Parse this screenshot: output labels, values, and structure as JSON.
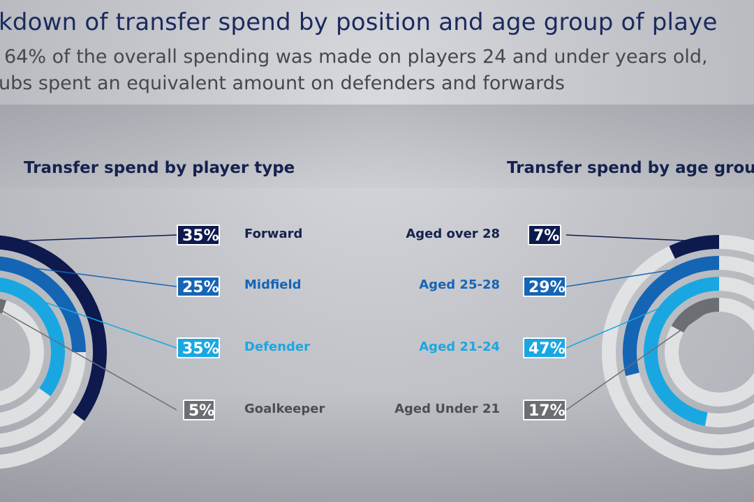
{
  "page": {
    "title": "kdown of transfer spend by position and age group of playe",
    "subtitle_line1": "64% of the overall spending was made on players 24 and under years old,",
    "subtitle_line2": "ubs spent an equivalent amount on defenders and forwards"
  },
  "colors": {
    "navy": "#0e1a4d",
    "blue": "#1565b5",
    "sky": "#1aa7e1",
    "grey": "#6b6e73",
    "ring": "#e6e7e9"
  },
  "chart_data": [
    {
      "type": "pie",
      "title": "Transfer spend by player type",
      "unit": "%",
      "categories": [
        "Forward",
        "Midfield",
        "Defender",
        "Goalkeeper"
      ],
      "values": [
        35,
        25,
        35,
        5
      ],
      "labels": [
        "35%",
        "25%",
        "35%",
        "5%"
      ],
      "colors": [
        "#0e1a4d",
        "#1565b5",
        "#1aa7e1",
        "#6b6e73"
      ]
    },
    {
      "type": "pie",
      "title": "Transfer spend by age group",
      "unit": "%",
      "categories": [
        "Aged over 28",
        "Aged 25-28",
        "Aged 21-24",
        "Aged Under 21"
      ],
      "values": [
        7,
        29,
        47,
        17
      ],
      "labels": [
        "7%",
        "29%",
        "47%",
        "17%"
      ],
      "colors": [
        "#0e1a4d",
        "#1565b5",
        "#1aa7e1",
        "#6b6e73"
      ]
    }
  ]
}
